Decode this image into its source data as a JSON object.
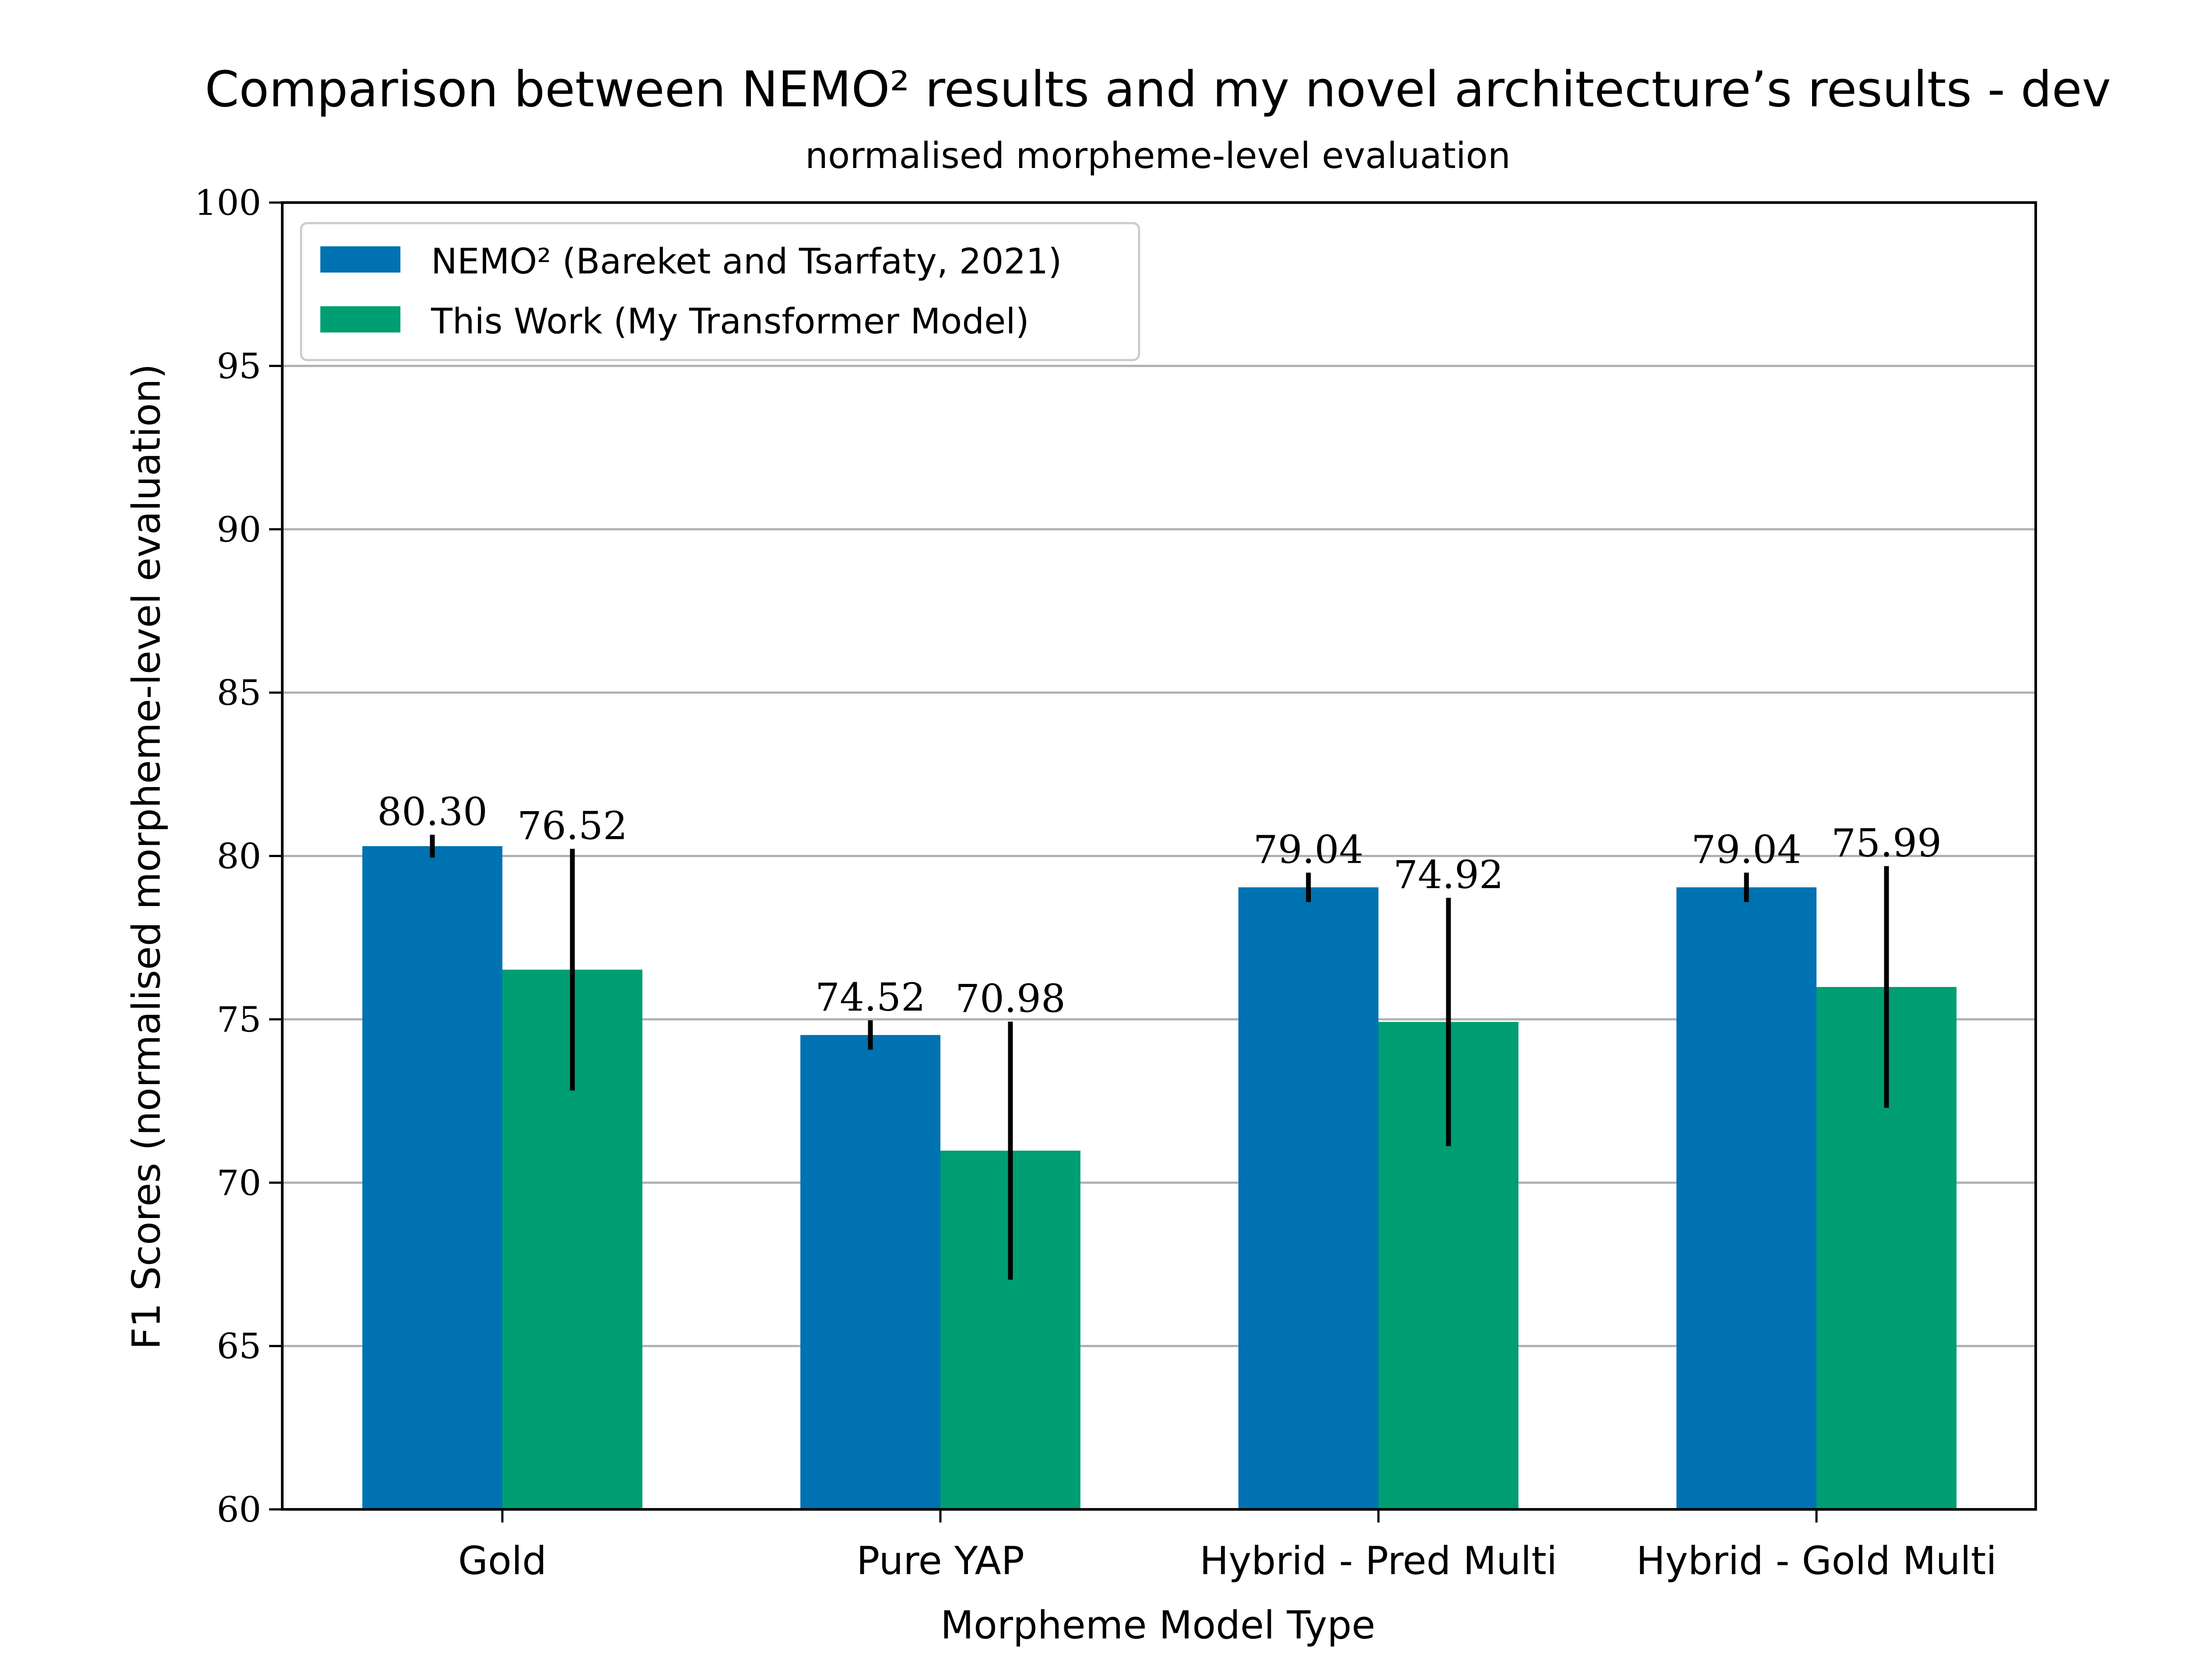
{
  "chart_data": {
    "type": "bar",
    "title": "Comparison between NEMO² results and my novel architecture’s results - dev",
    "subtitle": "normalised morpheme-level evaluation",
    "xlabel": "Morpheme Model Type",
    "ylabel": "F1 Scores (normalised morpheme-level evaluation)",
    "ylim": [
      60,
      100
    ],
    "yticks": [
      60,
      65,
      70,
      75,
      80,
      85,
      90,
      95,
      100
    ],
    "grid": "horizontal",
    "legend_position": "top-left",
    "categories": [
      "Gold",
      "Pure YAP",
      "Hybrid - Pred Multi",
      "Hybrid - Gold Multi"
    ],
    "series": [
      {
        "name": "NEMO² (Bareket and Tsarfaty, 2021)",
        "color": "#0072B2",
        "values": [
          80.3,
          74.52,
          79.04,
          79.04
        ],
        "labels": [
          "80.30",
          "74.52",
          "79.04",
          "79.04"
        ],
        "error": [
          0.35,
          0.45,
          0.45,
          0.45
        ]
      },
      {
        "name": "This Work (My Transformer Model)",
        "color": "#009E73",
        "values": [
          76.52,
          70.98,
          74.92,
          75.99
        ],
        "labels": [
          "76.52",
          "70.98",
          "74.92",
          "75.99"
        ],
        "error": [
          3.7,
          3.95,
          3.8,
          3.7
        ]
      }
    ]
  }
}
